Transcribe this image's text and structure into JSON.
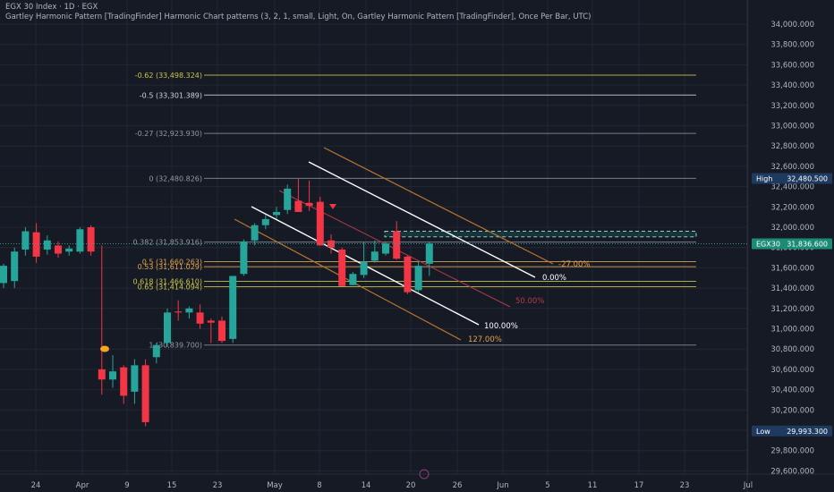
{
  "header": {
    "title": "EGX 30 Index · 1D · EGX",
    "subtitle": "Gartley Harmonic Pattern [TradingFinder] Harmonic Chart patterns (3, 2, 1, small, Light, On, Gartley Harmonic Pattern [TradingFinder], Once Per Bar, UTC)"
  },
  "colors": {
    "background": "#161a25",
    "grid": "#222734",
    "up": "#26a69a",
    "down": "#f23645",
    "level_white": "#d1d4dc",
    "level_orange": "#e2a24b",
    "level_yellow": "#c9c54a",
    "channel_orange": "#b9752d",
    "channel_red": "#b23a4a",
    "high_bg": "#1e3a5f",
    "price_tag_bg": "#1a8c76"
  },
  "price_axis": {
    "min": 29500,
    "max": 34000,
    "ticks": [
      "34,000.000",
      "33,800.000",
      "33,600.000",
      "33,400.000",
      "33,200.000",
      "33,000.000",
      "32,800.000",
      "32,600.000",
      "32,400.000",
      "32,200.000",
      "32,000.000",
      "31,800.000",
      "31,600.000",
      "31,400.000",
      "31,200.000",
      "31,000.000",
      "30,800.000",
      "30,600.000",
      "30,400.000",
      "30,200.000",
      "30,000.000",
      "29,800.000",
      "29,600.000"
    ]
  },
  "time_axis": {
    "labels": [
      "24",
      "Apr",
      "9",
      "15",
      "23",
      "May",
      "8",
      "14",
      "20",
      "26",
      "Jun",
      "5",
      "11",
      "17",
      "23",
      "Jul"
    ]
  },
  "price_tags": [
    {
      "label": "High",
      "value": "32,480.500",
      "price": 32480.5,
      "style": "high"
    },
    {
      "label": "EGX30",
      "value": "31,836.600",
      "price": 31836.6,
      "style": "last"
    },
    {
      "label": "Low",
      "value": "29,993.300",
      "price": 29993.3,
      "style": "low"
    }
  ],
  "fib_levels": [
    {
      "label": "-0.62 (33,498.324)",
      "price": 33498.324,
      "color": "yellow"
    },
    {
      "label": "-0.5 (33,301.389)",
      "price": 33301.389,
      "color": "white"
    },
    {
      "label": "-0.27 (32,923.930)",
      "price": 32923.93,
      "color": "grey"
    },
    {
      "label": "0 (32,480.826)",
      "price": 32480.826,
      "color": "grey"
    },
    {
      "label": "0.382 (31,853.916)",
      "price": 31853.916,
      "color": "grey"
    },
    {
      "label": "0.5 (31,660.263)",
      "price": 31660.263,
      "color": "orange"
    },
    {
      "label": "0.53 (31,611.029)",
      "price": 31611.029,
      "color": "orange"
    },
    {
      "label": "0.618 (31,466.610)",
      "price": 31466.61,
      "color": "yellow"
    },
    {
      "label": "0.65 (31,414.094)",
      "price": 31414.094,
      "color": "yellow"
    },
    {
      "label": "1 (30,839.700)",
      "price": 30839.7,
      "color": "grey"
    }
  ],
  "channel_labels": {
    "orange_top": "-27.00%",
    "white_top": "0.00%",
    "red_mid": "50.00%",
    "white_bottom": "100.00%",
    "orange_bottom": "127.00%"
  },
  "chart_data": {
    "type": "candlestick",
    "price_range": [
      29500,
      34000
    ],
    "candles": [
      {
        "o": 31450,
        "h": 31640,
        "l": 31400,
        "c": 31620
      },
      {
        "o": 31470,
        "h": 31800,
        "l": 31400,
        "c": 31760
      },
      {
        "o": 31780,
        "h": 32000,
        "l": 31720,
        "c": 31960
      },
      {
        "o": 31950,
        "h": 32040,
        "l": 31650,
        "c": 31710
      },
      {
        "o": 31780,
        "h": 31920,
        "l": 31730,
        "c": 31870
      },
      {
        "o": 31820,
        "h": 31860,
        "l": 31700,
        "c": 31740
      },
      {
        "o": 31760,
        "h": 31820,
        "l": 31720,
        "c": 31790
      },
      {
        "o": 31760,
        "h": 32000,
        "l": 31740,
        "c": 31980
      },
      {
        "o": 32000,
        "h": 32020,
        "l": 31720,
        "c": 31760
      },
      {
        "o": 30600,
        "h": 31820,
        "l": 30350,
        "c": 30500
      },
      {
        "o": 30500,
        "h": 30740,
        "l": 30420,
        "c": 30580
      },
      {
        "o": 30620,
        "h": 30640,
        "l": 30260,
        "c": 30340
      },
      {
        "o": 30380,
        "h": 30700,
        "l": 30260,
        "c": 30640
      },
      {
        "o": 30640,
        "h": 30700,
        "l": 30040,
        "c": 30080
      },
      {
        "o": 30720,
        "h": 30860,
        "l": 30660,
        "c": 30840
      },
      {
        "o": 30860,
        "h": 31200,
        "l": 30820,
        "c": 31160
      },
      {
        "o": 31170,
        "h": 31280,
        "l": 31080,
        "c": 31160
      },
      {
        "o": 31160,
        "h": 31220,
        "l": 31100,
        "c": 31200
      },
      {
        "o": 31160,
        "h": 31240,
        "l": 31000,
        "c": 31050
      },
      {
        "o": 31080,
        "h": 31100,
        "l": 30860,
        "c": 31060
      },
      {
        "o": 31080,
        "h": 31120,
        "l": 30860,
        "c": 30880
      },
      {
        "o": 30900,
        "h": 31520,
        "l": 30860,
        "c": 31520
      },
      {
        "o": 31540,
        "h": 31880,
        "l": 31520,
        "c": 31860
      },
      {
        "o": 31870,
        "h": 32040,
        "l": 31820,
        "c": 32020
      },
      {
        "o": 32020,
        "h": 32120,
        "l": 31980,
        "c": 32080
      },
      {
        "o": 32120,
        "h": 32200,
        "l": 32080,
        "c": 32150
      },
      {
        "o": 32170,
        "h": 32420,
        "l": 32130,
        "c": 32380
      },
      {
        "o": 32260,
        "h": 32480,
        "l": 32160,
        "c": 32150
      },
      {
        "o": 32240,
        "h": 32460,
        "l": 32160,
        "c": 32210
      },
      {
        "o": 32250,
        "h": 32300,
        "l": 31820,
        "c": 31820
      },
      {
        "o": 31870,
        "h": 31930,
        "l": 31740,
        "c": 31800
      },
      {
        "o": 31780,
        "h": 31800,
        "l": 31420,
        "c": 31420
      },
      {
        "o": 31430,
        "h": 31560,
        "l": 31430,
        "c": 31540
      },
      {
        "o": 31530,
        "h": 31850,
        "l": 31500,
        "c": 31660
      },
      {
        "o": 31670,
        "h": 31870,
        "l": 31650,
        "c": 31760
      },
      {
        "o": 31740,
        "h": 31860,
        "l": 31720,
        "c": 31840
      },
      {
        "o": 31960,
        "h": 32060,
        "l": 31680,
        "c": 31690
      },
      {
        "o": 31710,
        "h": 31720,
        "l": 31340,
        "c": 31360
      },
      {
        "o": 31380,
        "h": 31660,
        "l": 31360,
        "c": 31620
      },
      {
        "o": 31640,
        "h": 31860,
        "l": 31520,
        "c": 31840
      }
    ]
  }
}
